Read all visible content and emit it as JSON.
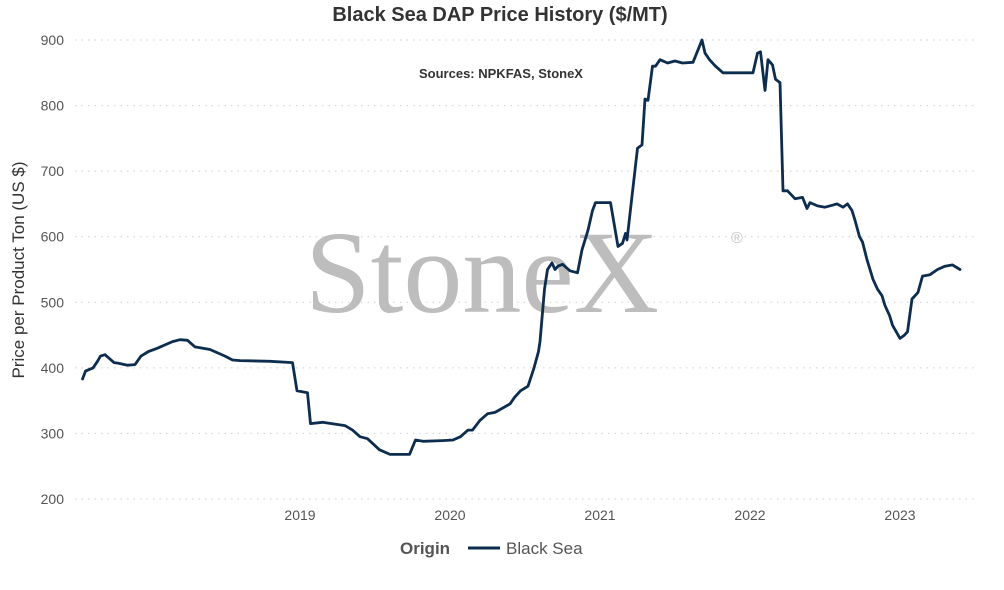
{
  "chart_data": {
    "type": "line",
    "title": "Black Sea DAP Price History ($/MT)",
    "subtitle": "Sources: NPKFAS, StoneX",
    "ylabel": "Price per Product Ton (US $)",
    "xlabel": "",
    "ylim": [
      200,
      900
    ],
    "xlim": [
      2018.0,
      2024.0
    ],
    "yticks": [
      200,
      300,
      400,
      500,
      600,
      700,
      800,
      900
    ],
    "xticks": [
      2019,
      2020,
      2021,
      2022,
      2023
    ],
    "ytick_labels": [
      "200",
      "300",
      "400",
      "500",
      "600",
      "700",
      "800",
      "900"
    ],
    "xtick_labels": [
      "2019",
      "2020",
      "2021",
      "2022",
      "2023"
    ],
    "grid": "horizontal",
    "legend": {
      "title": "Origin",
      "position": "bottom-center",
      "entries": [
        "Black Sea"
      ]
    },
    "watermark": {
      "text": "StoneX",
      "mark": "®"
    },
    "series": [
      {
        "name": "Black Sea",
        "color": "#0d2d4f",
        "x": [
          2018.05,
          2018.07,
          2018.12,
          2018.15,
          2018.17,
          2018.2,
          2018.26,
          2018.29,
          2018.35,
          2018.4,
          2018.44,
          2018.49,
          2018.55,
          2018.6,
          2018.65,
          2018.7,
          2018.75,
          2018.8,
          2018.9,
          2019.0,
          2019.05,
          2019.1,
          2019.3,
          2019.45,
          2019.48,
          2019.55,
          2019.57,
          2019.65,
          2019.8,
          2019.85,
          2019.9,
          2019.95,
          2020.03,
          2020.1,
          2020.23,
          2020.27,
          2020.32,
          2020.45,
          2020.52,
          2020.57,
          2020.62,
          2020.65,
          2020.7,
          2020.75,
          2020.8,
          2020.9,
          2020.93,
          2020.97,
          2021.02,
          2021.06,
          2021.09,
          2021.1,
          2021.13,
          2021.15,
          2021.18,
          2021.2,
          2021.22,
          2021.25,
          2021.3,
          2021.35,
          2021.38,
          2021.42,
          2021.45,
          2021.47,
          2021.5,
          2021.52,
          2021.57,
          2021.62,
          2021.65,
          2021.67,
          2021.68,
          2021.72,
          2021.75,
          2021.78,
          2021.8,
          2021.82,
          2021.85,
          2021.87,
          2021.9,
          2021.95,
          2022.0,
          2022.05,
          2022.12,
          2022.18,
          2022.2,
          2022.23,
          2022.27,
          2022.32,
          2022.52,
          2022.55,
          2022.57,
          2022.6,
          2022.62,
          2022.65,
          2022.67,
          2022.7,
          2022.72,
          2022.75,
          2022.8,
          2022.85,
          2022.88,
          2022.9,
          2022.95,
          2023.0,
          2023.05,
          2023.08,
          2023.12,
          2023.15,
          2023.18,
          2023.2,
          2023.23,
          2023.25,
          2023.28,
          2023.32,
          2023.35,
          2023.38,
          2023.4,
          2023.43,
          2023.45,
          2023.5,
          2023.53,
          2023.55,
          2023.58,
          2023.62,
          2023.65,
          2023.7,
          2023.75,
          2023.8,
          2023.85,
          2023.9
        ],
        "values": [
          383,
          395,
          400,
          410,
          418,
          420,
          408,
          407,
          404,
          405,
          418,
          425,
          430,
          435,
          440,
          443,
          442,
          432,
          428,
          418,
          412,
          411,
          410,
          408,
          365,
          362,
          315,
          317,
          312,
          305,
          295,
          292,
          275,
          268,
          268,
          290,
          288,
          289,
          290,
          295,
          305,
          305,
          320,
          330,
          332,
          345,
          355,
          365,
          372,
          400,
          425,
          440,
          520,
          550,
          560,
          550,
          555,
          558,
          548,
          545,
          580,
          610,
          640,
          652,
          652,
          652,
          652,
          585,
          590,
          605,
          595,
          675,
          735,
          740,
          810,
          808,
          860,
          860,
          870,
          865,
          868,
          865,
          866,
          900,
          880,
          870,
          860,
          850,
          850,
          880,
          882,
          823,
          870,
          862,
          840,
          835,
          670,
          670,
          658,
          660,
          643,
          652,
          647,
          645,
          648,
          650,
          645,
          650,
          640,
          625,
          600,
          592,
          565,
          535,
          520,
          510,
          495,
          480,
          465,
          445,
          450,
          455,
          505,
          515,
          540,
          542,
          550,
          555,
          557,
          550
        ]
      }
    ]
  }
}
